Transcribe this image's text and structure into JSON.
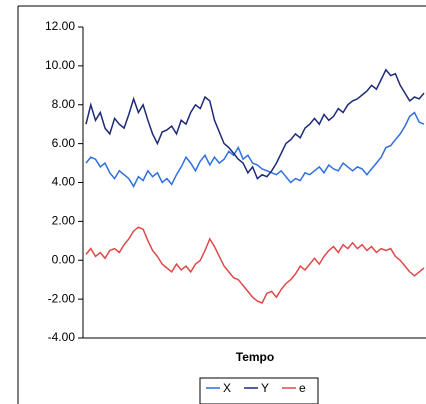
{
  "chart_data": {
    "type": "line",
    "x_label": "Tempo",
    "ylim": [
      -4,
      12
    ],
    "yticks": [
      {
        "value": -4,
        "label": "-4.00"
      },
      {
        "value": -2,
        "label": "-2.00"
      },
      {
        "value": 0,
        "label": "0.00"
      },
      {
        "value": 2,
        "label": "2.00"
      },
      {
        "value": 4,
        "label": "4.00"
      },
      {
        "value": 6,
        "label": "6.00"
      },
      {
        "value": 8,
        "label": "8.00"
      },
      {
        "value": 10,
        "label": "10.00"
      },
      {
        "value": 12,
        "label": "12.00"
      }
    ],
    "legend": "bottom",
    "series": [
      {
        "name": "X",
        "color": "#2f6fe0",
        "values": [
          5.0,
          5.3,
          5.2,
          4.8,
          5.0,
          4.5,
          4.2,
          4.6,
          4.4,
          4.2,
          3.8,
          4.3,
          4.1,
          4.6,
          4.3,
          4.5,
          4.0,
          4.2,
          3.9,
          4.4,
          4.8,
          5.3,
          5.0,
          4.6,
          5.1,
          5.4,
          4.9,
          5.3,
          5.0,
          5.2,
          5.6,
          5.4,
          5.8,
          5.2,
          5.4,
          5.0,
          4.9,
          4.7,
          4.6,
          4.5,
          4.4,
          4.6,
          4.3,
          4.0,
          4.2,
          4.1,
          4.5,
          4.4,
          4.6,
          4.8,
          4.5,
          4.9,
          4.7,
          4.6,
          5.0,
          4.8,
          4.6,
          4.8,
          4.7,
          4.4,
          4.7,
          5.0,
          5.3,
          5.8,
          5.9,
          6.2,
          6.5,
          6.9,
          7.4,
          7.6,
          7.1,
          7.0
        ]
      },
      {
        "name": "Y",
        "color": "#1c2a78",
        "values": [
          7.0,
          8.0,
          7.2,
          7.6,
          6.8,
          6.5,
          7.3,
          7.0,
          6.8,
          7.5,
          8.3,
          7.6,
          8.0,
          7.2,
          6.5,
          6.0,
          6.6,
          6.7,
          6.9,
          6.5,
          7.2,
          7.0,
          7.6,
          8.0,
          7.8,
          8.4,
          8.2,
          7.2,
          6.6,
          6.0,
          5.8,
          5.5,
          5.2,
          5.0,
          4.5,
          4.8,
          4.2,
          4.4,
          4.3,
          4.6,
          5.0,
          5.5,
          6.0,
          6.2,
          6.5,
          6.3,
          6.8,
          7.0,
          7.3,
          7.0,
          7.5,
          7.2,
          7.4,
          7.8,
          7.6,
          8.0,
          8.2,
          8.3,
          8.5,
          8.7,
          9.0,
          8.8,
          9.3,
          9.8,
          9.5,
          9.6,
          9.0,
          8.6,
          8.2,
          8.4,
          8.3,
          8.6
        ]
      },
      {
        "name": "e",
        "color": "#e04848",
        "values": [
          0.3,
          0.6,
          0.2,
          0.4,
          0.1,
          0.5,
          0.6,
          0.4,
          0.8,
          1.1,
          1.5,
          1.7,
          1.6,
          1.0,
          0.5,
          0.2,
          -0.2,
          -0.4,
          -0.6,
          -0.2,
          -0.5,
          -0.3,
          -0.6,
          -0.2,
          0.0,
          0.5,
          1.1,
          0.7,
          0.2,
          -0.3,
          -0.6,
          -0.9,
          -1.0,
          -1.3,
          -1.6,
          -1.9,
          -2.1,
          -2.2,
          -1.7,
          -1.6,
          -1.9,
          -1.5,
          -1.2,
          -1.0,
          -0.7,
          -0.3,
          -0.5,
          -0.2,
          0.1,
          -0.2,
          0.2,
          0.5,
          0.7,
          0.4,
          0.8,
          0.6,
          0.9,
          0.6,
          0.8,
          0.5,
          0.7,
          0.4,
          0.6,
          0.5,
          0.6,
          0.2,
          0.0,
          -0.3,
          -0.6,
          -0.8,
          -0.6,
          -0.4
        ]
      }
    ]
  }
}
